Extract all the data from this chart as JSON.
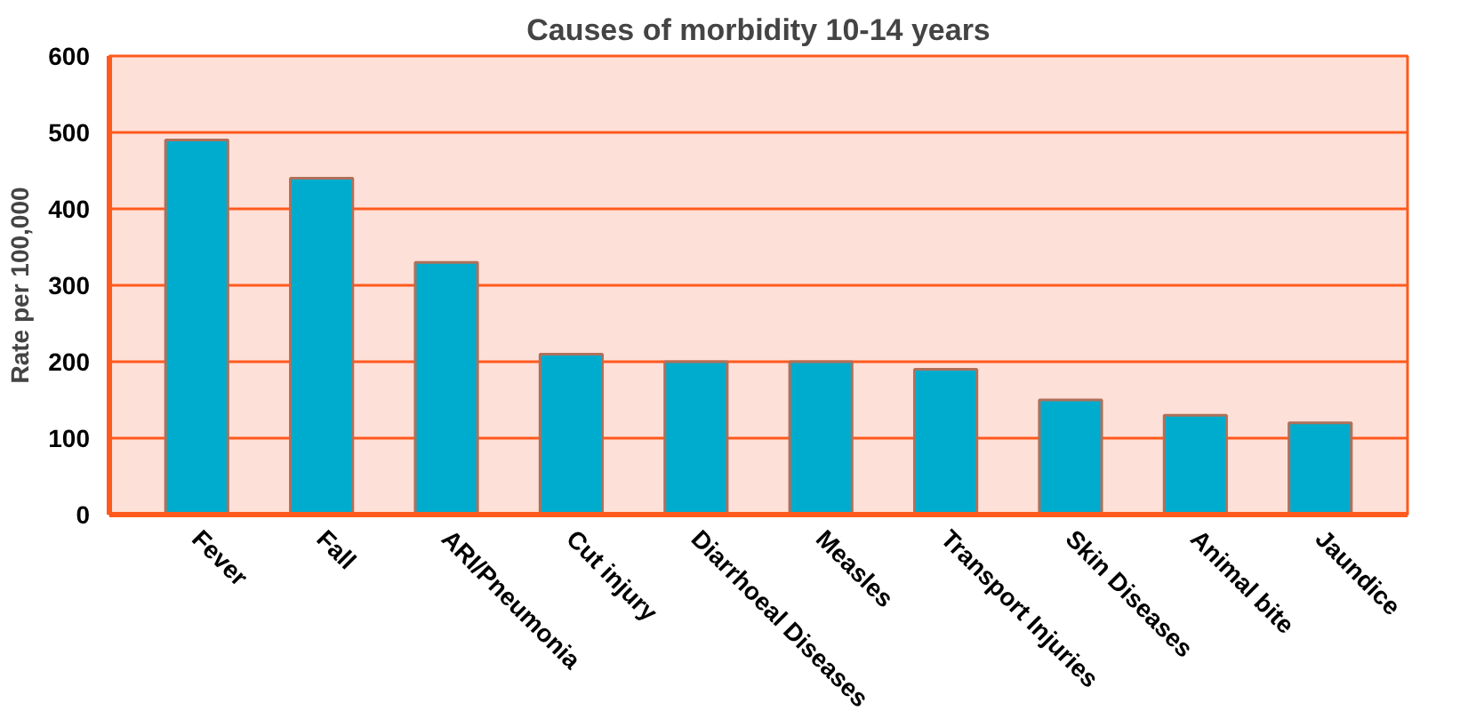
{
  "chart_data": {
    "type": "bar",
    "title": "Causes of morbidity 10-14 years",
    "ylabel": "Rate per 100,000",
    "categories": [
      "Fever",
      "Fall",
      "ARI/Pneumonia",
      "Cut injury",
      "Diarrhoeal Diseases",
      "Measles",
      "Transport Injuries",
      "Skin Diseases",
      "Animal bite",
      "Jaundice"
    ],
    "values": [
      490,
      440,
      330,
      210,
      200,
      200,
      190,
      150,
      130,
      120
    ],
    "color": "#00acce",
    "ylim": [
      0,
      600
    ],
    "yticks": [
      0,
      100,
      200,
      300,
      400,
      500,
      600
    ],
    "grid": "y"
  }
}
